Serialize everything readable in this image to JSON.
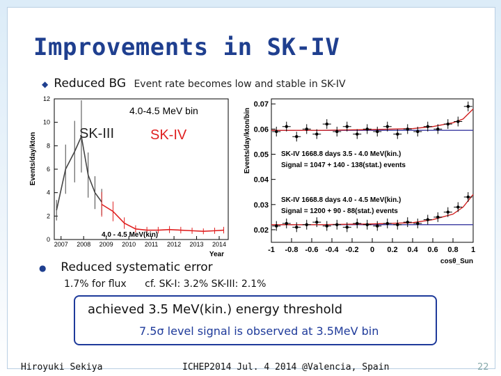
{
  "slide": {
    "title": "Improvements in SK-IV",
    "bullet1_main": "Reduced BG",
    "bullet1_sub": "Event rate becomes low and stable in SK-IV",
    "bullet2": "Reduced systematic error",
    "systematic": {
      "sk4": "1.7% for flux",
      "compare": "cf. SK-I: 3.2% SK-III: 2.1%"
    },
    "highlight": {
      "line1": "achieved 3.5 MeV(kin.) energy threshold",
      "line2": "7.5σ level signal is observed at 3.5MeV bin"
    },
    "footer": {
      "author": "Hiroyuki Sekiya",
      "conference": "ICHEP2014 Jul. 4 2014 @Valencia, Spain",
      "page": "22"
    }
  },
  "chart_data": [
    {
      "type": "line",
      "ylabel": "Events/day/kton",
      "xlabel": "Year",
      "bin_label": "4.0-4.5 MeV bin",
      "footnote": "4.0 - 4.5 MeV(kin)",
      "era_labels": [
        "SK-III",
        "SK-IV"
      ],
      "x_ticks": [
        "2007",
        "2008",
        "2009",
        "2010",
        "2011",
        "2012",
        "2013",
        "2014"
      ],
      "y_ticks": [
        "0",
        "2",
        "4",
        "6",
        "8",
        "10",
        "12"
      ],
      "ylim": [
        0,
        12
      ],
      "xlim": [
        2006.7,
        2014.4
      ],
      "series": [
        {
          "color": "#444444",
          "x": [
            2006.8,
            2007.2,
            2007.6,
            2007.9,
            2008.2,
            2008.5,
            2008.8
          ],
          "y": [
            2.5,
            6.0,
            7.5,
            8.8,
            5.5,
            4.0,
            3.2
          ]
        },
        {
          "color": "#e02020",
          "x": [
            2008.8,
            2009.3,
            2009.8,
            2010.3,
            2010.8,
            2011.3,
            2011.8,
            2012.3,
            2012.8,
            2013.3,
            2013.8,
            2014.2
          ],
          "y": [
            3.0,
            2.4,
            1.4,
            0.9,
            0.8,
            0.8,
            0.85,
            0.8,
            0.75,
            0.7,
            0.75,
            0.8
          ]
        }
      ]
    },
    {
      "type": "scatter",
      "ylabel": "Events/day/kton/bin",
      "xlabel": "cosθ_Sun",
      "x_ticks": [
        "-1",
        "-0.8",
        "-0.6",
        "-0.4",
        "-0.2",
        "0",
        "0.2",
        "0.4",
        "0.6",
        "0.8",
        "1"
      ],
      "y_ticks": [
        "0.02",
        "0.03",
        "0.04",
        "0.05",
        "0.06",
        "0.07"
      ],
      "xlim": [
        -1,
        1
      ],
      "ylim": [
        0.015,
        0.072
      ],
      "annotations": [
        {
          "line1": "SK-IV 1668.8 days 3.5 - 4.0 MeV(kin.)",
          "line2": "Signal = 1047 + 140 - 138(stat.) events"
        },
        {
          "line1": "SK-IV 1668.8 days 4.0 - 4.5 MeV(kin.)",
          "line2": "Signal = 1200 + 90 - 88(stat.) events"
        }
      ],
      "series": [
        {
          "name": "3.5-4.0 MeV",
          "x": [
            -0.95,
            -0.85,
            -0.75,
            -0.65,
            -0.55,
            -0.45,
            -0.35,
            -0.25,
            -0.15,
            -0.05,
            0.05,
            0.15,
            0.25,
            0.35,
            0.45,
            0.55,
            0.65,
            0.75,
            0.85,
            0.95
          ],
          "y": [
            0.059,
            0.061,
            0.057,
            0.06,
            0.058,
            0.062,
            0.059,
            0.061,
            0.058,
            0.06,
            0.059,
            0.061,
            0.058,
            0.06,
            0.059,
            0.061,
            0.06,
            0.062,
            0.063,
            0.069
          ]
        },
        {
          "name": "4.0-4.5 MeV",
          "x": [
            -0.95,
            -0.85,
            -0.75,
            -0.65,
            -0.55,
            -0.45,
            -0.35,
            -0.25,
            -0.15,
            -0.05,
            0.05,
            0.15,
            0.25,
            0.35,
            0.45,
            0.55,
            0.65,
            0.75,
            0.85,
            0.95
          ],
          "y": [
            0.0215,
            0.0225,
            0.021,
            0.022,
            0.023,
            0.0215,
            0.022,
            0.021,
            0.0225,
            0.022,
            0.0215,
            0.0225,
            0.022,
            0.023,
            0.0225,
            0.024,
            0.025,
            0.027,
            0.029,
            0.033
          ]
        }
      ],
      "fits": [
        {
          "color": "#3a3aa0",
          "x": [
            -1,
            -0.6,
            -0.2,
            0.2,
            0.6,
            1
          ],
          "y": [
            0.0595,
            0.0595,
            0.0595,
            0.0595,
            0.0595,
            0.0595
          ]
        },
        {
          "color": "#3a3aa0",
          "x": [
            -1,
            -0.6,
            -0.2,
            0.2,
            0.6,
            1
          ],
          "y": [
            0.022,
            0.022,
            0.022,
            0.022,
            0.022,
            0.022
          ]
        },
        {
          "color": "#d02020",
          "x": [
            -1,
            -0.5,
            0,
            0.4,
            0.6,
            0.8,
            0.9,
            1
          ],
          "y": [
            0.0595,
            0.0595,
            0.0598,
            0.0602,
            0.061,
            0.0625,
            0.064,
            0.068
          ]
        },
        {
          "color": "#d02020",
          "x": [
            -1,
            -0.5,
            0,
            0.4,
            0.6,
            0.8,
            0.9,
            1
          ],
          "y": [
            0.022,
            0.022,
            0.0223,
            0.0228,
            0.024,
            0.0262,
            0.029,
            0.034
          ]
        }
      ]
    }
  ]
}
